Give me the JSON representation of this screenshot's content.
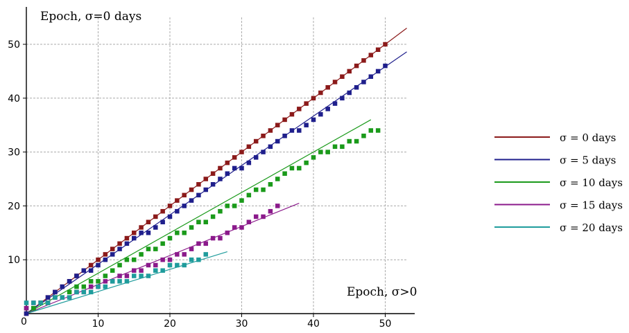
{
  "chart_data": {
    "type": "scatter",
    "ylabel": "Epoch, σ=0 days",
    "xlabel": "Epoch, σ>0",
    "xlim": [
      0,
      53
    ],
    "ylim": [
      0,
      55
    ],
    "xticks": [
      10,
      20,
      30,
      40,
      50
    ],
    "yticks": [
      10,
      20,
      30,
      40,
      50
    ],
    "origin_label": "0",
    "grid": true,
    "legend_position": "right",
    "series": [
      {
        "name": "σ = 0 days",
        "color": "#8b1a1a",
        "fit_line": [
          [
            0,
            0
          ],
          [
            53,
            53
          ]
        ],
        "points": [
          [
            0,
            0
          ],
          [
            1,
            1
          ],
          [
            2,
            2
          ],
          [
            3,
            3
          ],
          [
            4,
            4
          ],
          [
            5,
            5
          ],
          [
            6,
            6
          ],
          [
            7,
            7
          ],
          [
            8,
            8
          ],
          [
            9,
            9
          ],
          [
            10,
            10
          ],
          [
            11,
            11
          ],
          [
            12,
            12
          ],
          [
            13,
            13
          ],
          [
            14,
            14
          ],
          [
            15,
            15
          ],
          [
            16,
            16
          ],
          [
            17,
            17
          ],
          [
            18,
            18
          ],
          [
            19,
            19
          ],
          [
            20,
            20
          ],
          [
            21,
            21
          ],
          [
            22,
            22
          ],
          [
            23,
            23
          ],
          [
            24,
            24
          ],
          [
            25,
            25
          ],
          [
            26,
            26
          ],
          [
            27,
            27
          ],
          [
            28,
            28
          ],
          [
            29,
            29
          ],
          [
            30,
            30
          ],
          [
            31,
            31
          ],
          [
            32,
            32
          ],
          [
            33,
            33
          ],
          [
            34,
            34
          ],
          [
            35,
            35
          ],
          [
            36,
            36
          ],
          [
            37,
            37
          ],
          [
            38,
            38
          ],
          [
            39,
            39
          ],
          [
            40,
            40
          ],
          [
            41,
            41
          ],
          [
            42,
            42
          ],
          [
            43,
            43
          ],
          [
            44,
            44
          ],
          [
            45,
            45
          ],
          [
            46,
            46
          ],
          [
            47,
            47
          ],
          [
            48,
            48
          ],
          [
            49,
            49
          ],
          [
            50,
            50
          ]
        ]
      },
      {
        "name": "σ = 5 days",
        "color": "#1f1f8c",
        "fit_line": [
          [
            0,
            0
          ],
          [
            53,
            48.6
          ]
        ],
        "points": [
          [
            0,
            0
          ],
          [
            1,
            1
          ],
          [
            2,
            2
          ],
          [
            3,
            3
          ],
          [
            4,
            4
          ],
          [
            5,
            5
          ],
          [
            6,
            6
          ],
          [
            7,
            7
          ],
          [
            8,
            8
          ],
          [
            9,
            8
          ],
          [
            10,
            9
          ],
          [
            11,
            10
          ],
          [
            12,
            11
          ],
          [
            13,
            12
          ],
          [
            14,
            13
          ],
          [
            15,
            14
          ],
          [
            16,
            15
          ],
          [
            17,
            15
          ],
          [
            18,
            16
          ],
          [
            19,
            17
          ],
          [
            20,
            18
          ],
          [
            21,
            19
          ],
          [
            22,
            20
          ],
          [
            23,
            21
          ],
          [
            24,
            22
          ],
          [
            25,
            23
          ],
          [
            26,
            24
          ],
          [
            27,
            25
          ],
          [
            28,
            26
          ],
          [
            29,
            27
          ],
          [
            30,
            27
          ],
          [
            31,
            28
          ],
          [
            32,
            29
          ],
          [
            33,
            30
          ],
          [
            34,
            31
          ],
          [
            35,
            32
          ],
          [
            36,
            33
          ],
          [
            37,
            34
          ],
          [
            38,
            34
          ],
          [
            39,
            35
          ],
          [
            40,
            36
          ],
          [
            41,
            37
          ],
          [
            42,
            38
          ],
          [
            43,
            39
          ],
          [
            44,
            40
          ],
          [
            45,
            41
          ],
          [
            46,
            42
          ],
          [
            47,
            43
          ],
          [
            48,
            44
          ],
          [
            49,
            45
          ],
          [
            50,
            46
          ]
        ]
      },
      {
        "name": "σ = 10 days",
        "color": "#1a9a1a",
        "fit_line": [
          [
            0,
            0
          ],
          [
            48,
            36
          ]
        ],
        "points": [
          [
            0,
            1
          ],
          [
            1,
            1
          ],
          [
            2,
            2
          ],
          [
            3,
            2
          ],
          [
            4,
            3
          ],
          [
            5,
            3
          ],
          [
            6,
            4
          ],
          [
            7,
            5
          ],
          [
            8,
            5
          ],
          [
            9,
            6
          ],
          [
            10,
            6
          ],
          [
            11,
            7
          ],
          [
            12,
            8
          ],
          [
            13,
            9
          ],
          [
            14,
            10
          ],
          [
            15,
            10
          ],
          [
            16,
            11
          ],
          [
            17,
            12
          ],
          [
            18,
            12
          ],
          [
            19,
            13
          ],
          [
            20,
            14
          ],
          [
            21,
            15
          ],
          [
            22,
            15
          ],
          [
            23,
            16
          ],
          [
            24,
            17
          ],
          [
            25,
            17
          ],
          [
            26,
            18
          ],
          [
            27,
            19
          ],
          [
            28,
            20
          ],
          [
            29,
            20
          ],
          [
            30,
            21
          ],
          [
            31,
            22
          ],
          [
            32,
            23
          ],
          [
            33,
            23
          ],
          [
            34,
            24
          ],
          [
            35,
            25
          ],
          [
            36,
            26
          ],
          [
            37,
            27
          ],
          [
            38,
            27
          ],
          [
            39,
            28
          ],
          [
            40,
            29
          ],
          [
            41,
            30
          ],
          [
            42,
            30
          ],
          [
            43,
            31
          ],
          [
            44,
            31
          ],
          [
            45,
            32
          ],
          [
            46,
            32
          ],
          [
            47,
            33
          ],
          [
            48,
            34
          ],
          [
            49,
            34
          ]
        ]
      },
      {
        "name": "σ = 15 days",
        "color": "#8b1a8b",
        "fit_line": [
          [
            0,
            0
          ],
          [
            38,
            20.5
          ]
        ],
        "points": [
          [
            0,
            1
          ],
          [
            1,
            2
          ],
          [
            2,
            2
          ],
          [
            3,
            2
          ],
          [
            4,
            3
          ],
          [
            5,
            3
          ],
          [
            6,
            3
          ],
          [
            7,
            4
          ],
          [
            8,
            4
          ],
          [
            9,
            5
          ],
          [
            10,
            5
          ],
          [
            11,
            6
          ],
          [
            12,
            6
          ],
          [
            13,
            7
          ],
          [
            14,
            7
          ],
          [
            15,
            8
          ],
          [
            16,
            8
          ],
          [
            17,
            9
          ],
          [
            18,
            9
          ],
          [
            19,
            10
          ],
          [
            20,
            10
          ],
          [
            21,
            11
          ],
          [
            22,
            11
          ],
          [
            23,
            12
          ],
          [
            24,
            13
          ],
          [
            25,
            13
          ],
          [
            26,
            14
          ],
          [
            27,
            14
          ],
          [
            28,
            15
          ],
          [
            29,
            16
          ],
          [
            30,
            16
          ],
          [
            31,
            17
          ],
          [
            32,
            18
          ],
          [
            33,
            18
          ],
          [
            34,
            19
          ],
          [
            35,
            20
          ]
        ]
      },
      {
        "name": "σ = 20 days",
        "color": "#1f9c9c",
        "fit_line": [
          [
            0,
            0
          ],
          [
            28,
            11.5
          ]
        ],
        "points": [
          [
            0,
            2
          ],
          [
            1,
            2
          ],
          [
            2,
            2
          ],
          [
            3,
            2
          ],
          [
            4,
            3
          ],
          [
            5,
            3
          ],
          [
            6,
            3
          ],
          [
            7,
            4
          ],
          [
            8,
            4
          ],
          [
            9,
            4
          ],
          [
            10,
            5
          ],
          [
            11,
            5
          ],
          [
            12,
            6
          ],
          [
            13,
            6
          ],
          [
            14,
            6
          ],
          [
            15,
            7
          ],
          [
            16,
            7
          ],
          [
            17,
            7
          ],
          [
            18,
            8
          ],
          [
            19,
            8
          ],
          [
            20,
            9
          ],
          [
            21,
            9
          ],
          [
            22,
            9
          ],
          [
            23,
            10
          ],
          [
            24,
            10
          ],
          [
            25,
            11
          ]
        ]
      }
    ]
  }
}
